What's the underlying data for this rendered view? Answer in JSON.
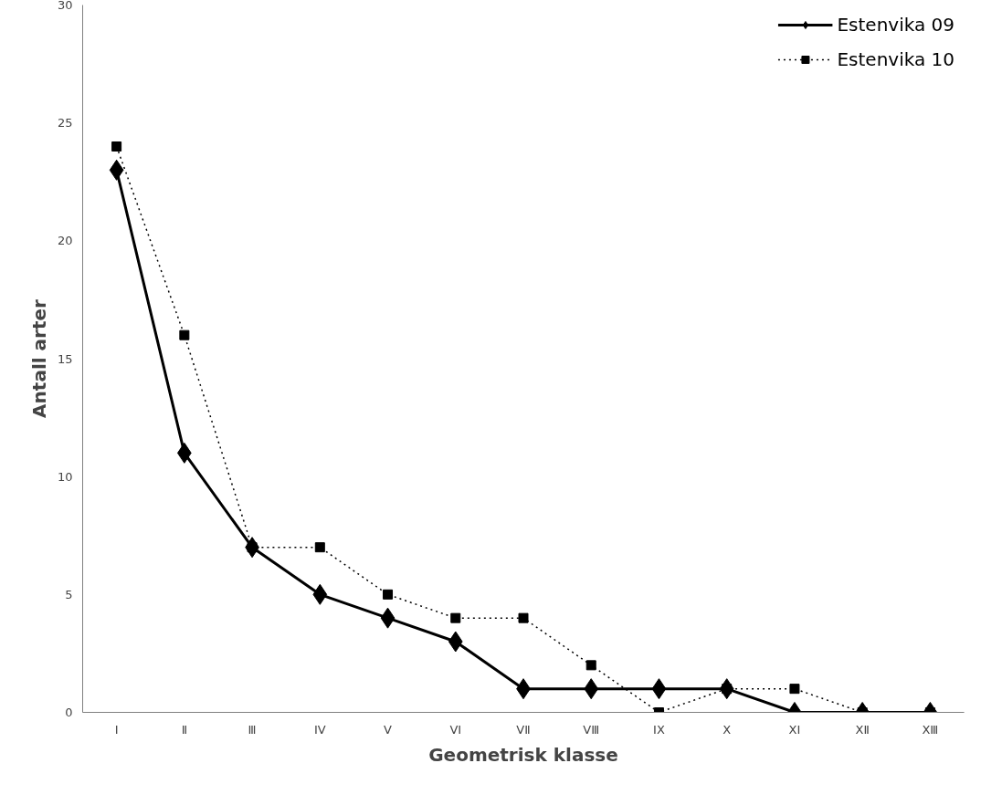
{
  "chart_data": {
    "type": "line",
    "xlabel": "Geometrisk klasse",
    "ylabel": "Antall arter",
    "categories": [
      "I",
      "Ⅱ",
      "Ⅲ",
      "IV",
      "V",
      "VI",
      "VⅡ",
      "VⅢ",
      "IX",
      "X",
      "XI",
      "XⅡ",
      "XⅢ"
    ],
    "ylim": [
      0,
      30
    ],
    "yticks": [
      0,
      5,
      10,
      15,
      20,
      25,
      30
    ],
    "grid": false,
    "legend": "top right",
    "series": [
      {
        "name": "Estenvika 09",
        "color": "#000000",
        "marker": "diamond",
        "line_style": "solid",
        "values": [
          23,
          11,
          7,
          5,
          4,
          3,
          1,
          1,
          1,
          1,
          0,
          0,
          0
        ]
      },
      {
        "name": "Estenvika 10",
        "color": "#000000",
        "marker": "square",
        "line_style": "dotted",
        "values": [
          24,
          16,
          7,
          7,
          5,
          4,
          4,
          2,
          0,
          1,
          1,
          0,
          0
        ]
      }
    ]
  }
}
